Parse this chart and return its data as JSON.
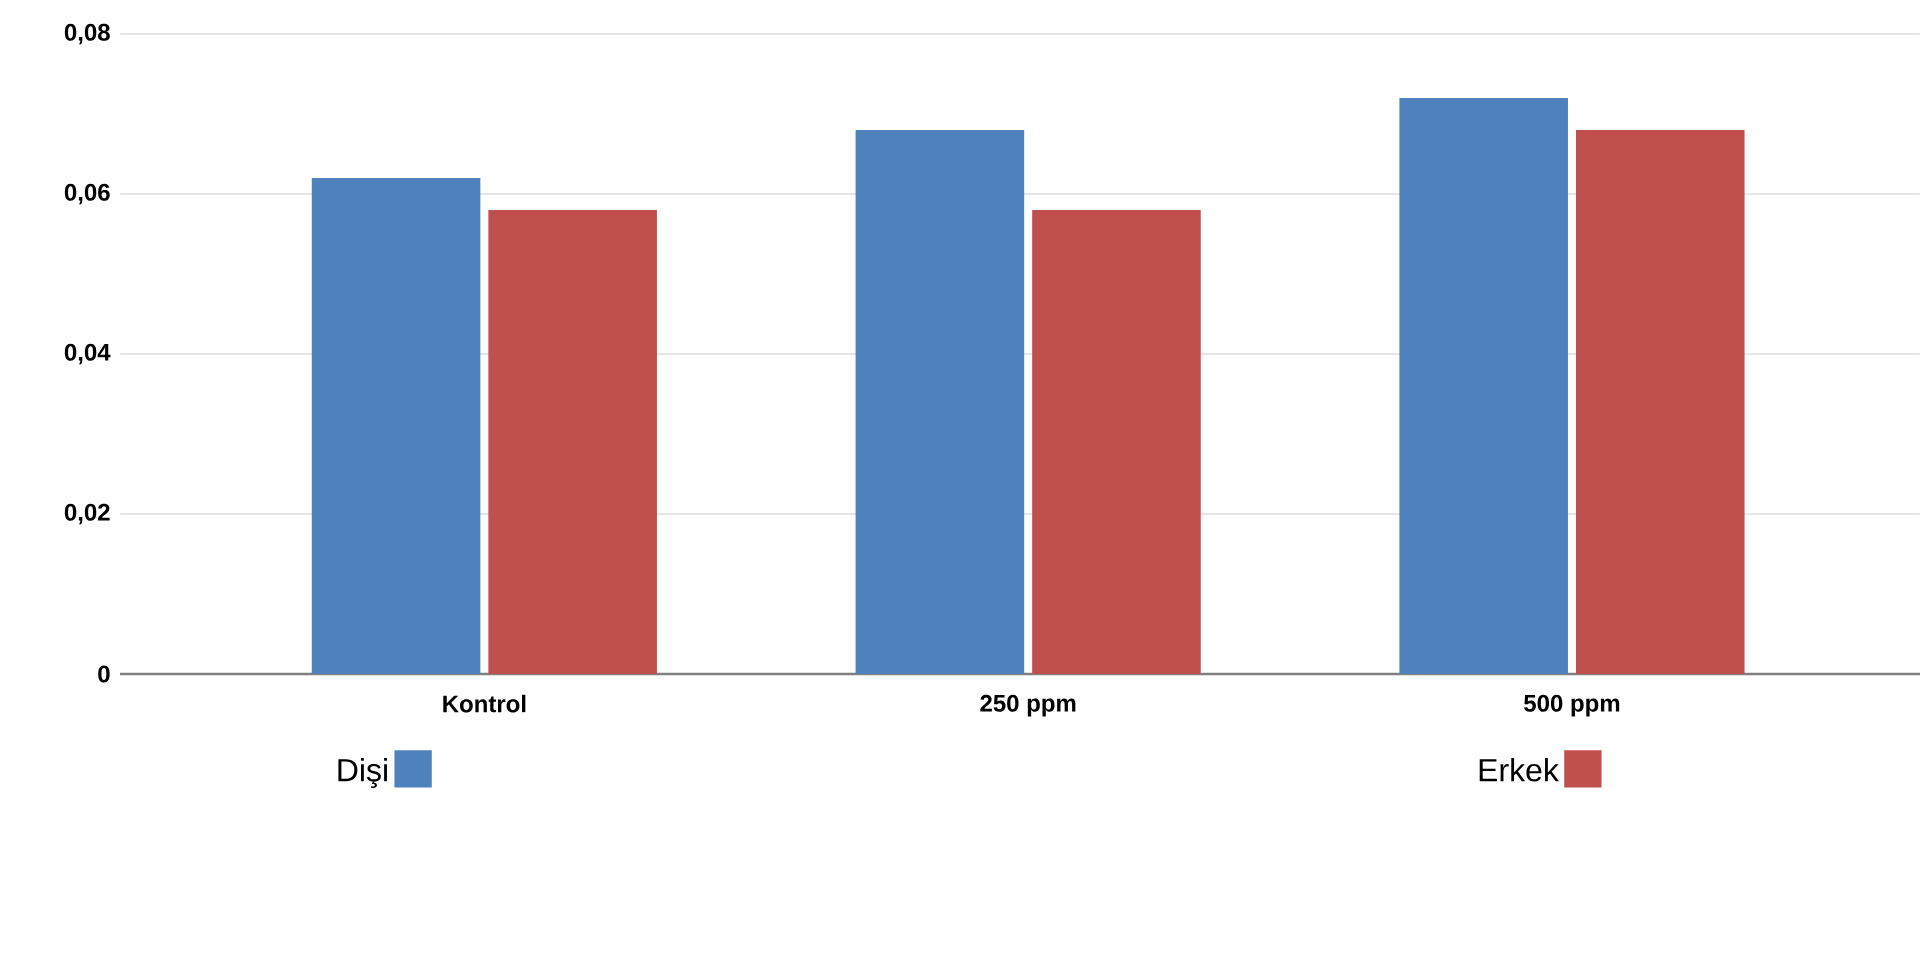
{
  "chart_data": {
    "type": "bar",
    "categories": [
      "Kontrol",
      "250 ppm",
      "500 ppm"
    ],
    "series": [
      {
        "name": "Dişi",
        "color": "#4f81bd",
        "values": [
          0.062,
          0.068,
          0.072
        ]
      },
      {
        "name": "Erkek",
        "color": "#c0504d",
        "values": [
          0.058,
          0.058,
          0.068
        ]
      }
    ],
    "ylim": [
      0,
      0.08
    ],
    "yticks": [
      {
        "value": 0,
        "label": "0"
      },
      {
        "value": 0.02,
        "label": "0,02"
      },
      {
        "value": 0.04,
        "label": "0,04"
      },
      {
        "value": 0.06,
        "label": "0,06"
      },
      {
        "value": 0.08,
        "label": "0,08"
      }
    ],
    "grid": "y",
    "legend": "bottom"
  }
}
